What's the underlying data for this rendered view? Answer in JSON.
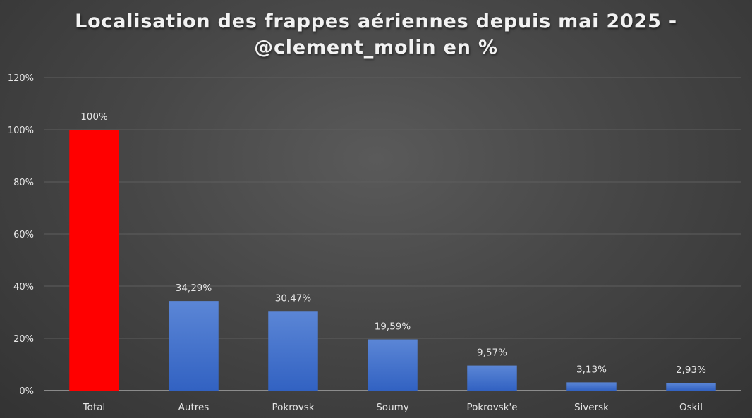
{
  "chart_data": {
    "type": "bar",
    "title": "Localisation des frappes aériennes depuis mai 2025 - @clement_molin en %",
    "title_lines": [
      "Localisation des frappes aériennes depuis mai 2025 -",
      "@clement_molin en %"
    ],
    "xlabel": "",
    "ylabel": "",
    "categories": [
      "Total",
      "Autres",
      "Pokrovsk",
      "Soumy",
      "Pokrovsk'e",
      "Siversk",
      "Oskil"
    ],
    "values": [
      100,
      34.29,
      30.47,
      19.59,
      9.57,
      3.13,
      2.93
    ],
    "data_labels": [
      "100%",
      "34,29%",
      "30,47%",
      "19,59%",
      "9,57%",
      "3,13%",
      "2,93%"
    ],
    "ylim": [
      0,
      120
    ],
    "yticks": [
      0,
      20,
      40,
      60,
      80,
      100,
      120
    ],
    "ytick_labels": [
      "0%",
      "20%",
      "40%",
      "60%",
      "80%",
      "100%",
      "120%"
    ],
    "grid": true,
    "legend": "none",
    "colors": {
      "highlight": "#ff0000",
      "bar_top": "#5b86d6",
      "bar_bottom": "#3262c2",
      "grid": "#5e5e5e",
      "axis": "#a6a6a6",
      "text": "#e6e6e6"
    }
  }
}
